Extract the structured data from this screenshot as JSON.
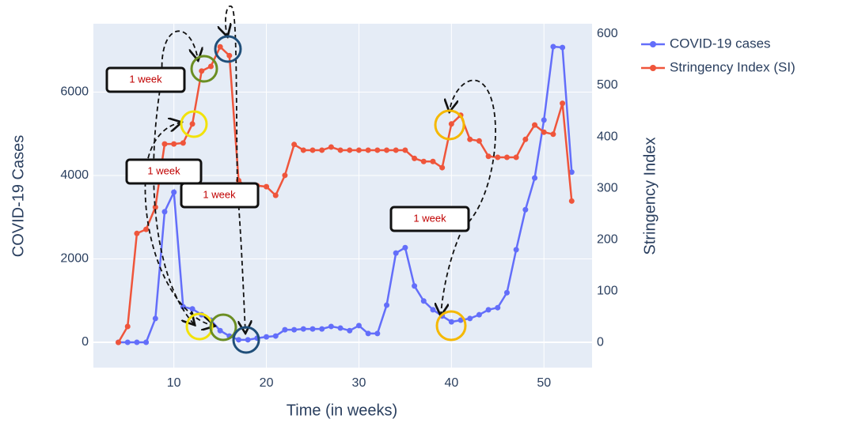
{
  "chart_data": {
    "type": "line",
    "xlabel": "Time (in weeks)",
    "ylabel": "COVID-19 Cases",
    "y2label": "Stringency Index",
    "x": [
      4,
      5,
      6,
      7,
      8,
      9,
      10,
      11,
      12,
      13,
      14,
      15,
      16,
      17,
      18,
      19,
      20,
      21,
      22,
      23,
      24,
      25,
      26,
      27,
      28,
      29,
      30,
      31,
      32,
      33,
      34,
      35,
      36,
      37,
      38,
      39,
      40,
      41,
      42,
      43,
      44,
      45,
      46,
      47,
      48,
      49,
      50,
      51,
      52,
      53
    ],
    "series": [
      {
        "name": "COVID-19 cases",
        "color": "#636efa",
        "values": [
          0,
          0,
          0,
          0,
          570,
          3130,
          3600,
          850,
          800,
          660,
          530,
          280,
          150,
          60,
          60,
          100,
          130,
          150,
          300,
          300,
          320,
          320,
          320,
          380,
          340,
          280,
          400,
          210,
          210,
          890,
          2140,
          2270,
          1350,
          990,
          780,
          630,
          490,
          530,
          570,
          660,
          780,
          830,
          1190,
          2220,
          3180,
          3940,
          5330,
          7090,
          7070,
          4080
        ]
      },
      {
        "name": "Stringency Index (SI)",
        "color": "#ef553b",
        "axis": "y2",
        "values": [
          0,
          31,
          212,
          220,
          263,
          386,
          386,
          388,
          425,
          528,
          537,
          575,
          558,
          315,
          300,
          305,
          303,
          286,
          325,
          385,
          374,
          374,
          374,
          380,
          374,
          374,
          374,
          374,
          374,
          374,
          374,
          374,
          358,
          352,
          352,
          340,
          425,
          442,
          395,
          392,
          362,
          360,
          360,
          360,
          395,
          423,
          409,
          405,
          465,
          275
        ]
      }
    ],
    "xlim": [
      1.3,
      55.2
    ],
    "xticks": [
      10,
      20,
      30,
      40,
      50
    ],
    "ylim": [
      -607,
      7640
    ],
    "yticks": [
      0,
      2000,
      4000,
      6000
    ],
    "y2lim": [
      -49,
      620
    ],
    "y2ticks": [
      0,
      100,
      200,
      300,
      400,
      500,
      600
    ],
    "grid": true,
    "legend": "top-right",
    "annotations": [
      "1 week",
      "1 week",
      "1 week",
      "1 week"
    ]
  }
}
